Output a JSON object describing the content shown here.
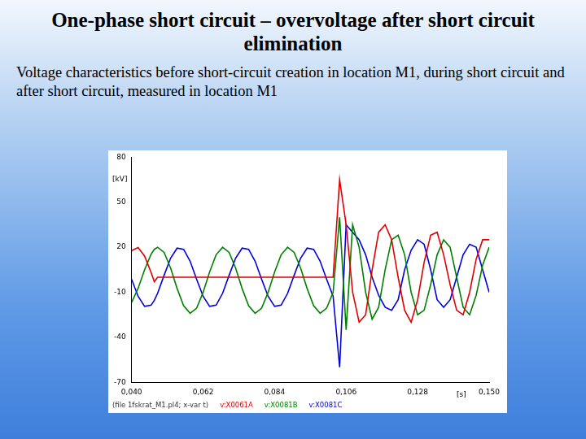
{
  "chart_data": {
    "type": "line",
    "title": "One-phase short circuit – overvoltage after short circuit elimination",
    "subtitle": "Voltage characteristics before short-circuit creation in location M1, during short circuit and after short circuit, measured in location M1",
    "y_label": "[kV]",
    "x_label": "[s]",
    "annotation": "(file 1fskrat_M1.pl4; x-var t)",
    "x": [
      0.04,
      0.042,
      0.044,
      0.046,
      0.047,
      0.048,
      0.05,
      0.052,
      0.054,
      0.056,
      0.058,
      0.06,
      0.062,
      0.064,
      0.066,
      0.068,
      0.07,
      0.072,
      0.074,
      0.076,
      0.078,
      0.08,
      0.082,
      0.084,
      0.086,
      0.088,
      0.09,
      0.092,
      0.094,
      0.096,
      0.098,
      0.1,
      0.102,
      0.104,
      0.106,
      0.108,
      0.11,
      0.112,
      0.114,
      0.116,
      0.118,
      0.12,
      0.122,
      0.124,
      0.126,
      0.128,
      0.13,
      0.132,
      0.134,
      0.136,
      0.138,
      0.14,
      0.142,
      0.144,
      0.146,
      0.148,
      0.15
    ],
    "series": [
      {
        "name": "v:X0061A",
        "color": "#e00000",
        "values": [
          17.8,
          19.8,
          14.1,
          3.1,
          -3,
          0,
          0,
          0,
          0,
          0,
          0,
          0,
          0,
          0,
          0,
          0,
          0,
          0,
          0,
          0,
          0,
          0,
          0,
          0,
          0,
          0,
          0,
          0,
          0,
          0,
          0,
          0,
          0,
          65,
          35,
          -10,
          -30,
          -25,
          5,
          30,
          35,
          25,
          0,
          -22,
          -30,
          -15,
          10,
          28,
          30,
          15,
          -5,
          -22,
          -25,
          -10,
          12,
          25,
          25
        ]
      },
      {
        "name": "v:X0081B",
        "color": "#008000",
        "values": [
          -16.9,
          -7.4,
          5.0,
          15.4,
          18.6,
          20,
          16.6,
          6.1,
          -7.5,
          -19.0,
          -24.0,
          -20.6,
          -10.1,
          3.5,
          15.0,
          20,
          16.6,
          6.1,
          -7.5,
          -19.0,
          -24.0,
          -20.6,
          -10.1,
          3.5,
          15.0,
          20,
          16.6,
          6.1,
          -7.5,
          -19.0,
          -24.0,
          -20.6,
          -10.1,
          40,
          -35,
          35,
          20,
          -10,
          -28,
          -20,
          5,
          25,
          28,
          15,
          -10,
          -25,
          -22,
          -5,
          15,
          25,
          20,
          0,
          -20,
          -25,
          -12,
          8,
          20
        ]
      },
      {
        "name": "v:X0081C",
        "color": "#0000e0",
        "values": [
          -1.3,
          -12.7,
          -19.4,
          -18.6,
          -15.4,
          -10.7,
          1.3,
          12.7,
          19.4,
          18.6,
          10.7,
          -1.3,
          -12.7,
          -19.4,
          -18.6,
          -10.7,
          1.3,
          12.7,
          19.4,
          18.6,
          10.7,
          -1.3,
          -12.7,
          -19.4,
          -18.6,
          -10.7,
          1.3,
          12.7,
          19.4,
          18.6,
          10.7,
          -1.3,
          -12.7,
          -60,
          35,
          30,
          25,
          15,
          0,
          -12,
          -20,
          -22,
          -15,
          5,
          18,
          25,
          22,
          5,
          -15,
          -20,
          -15,
          0,
          15,
          22,
          20,
          5,
          -10
        ]
      }
    ],
    "xlim": [
      0.04,
      0.15
    ],
    "xticks": [
      {
        "value": 0.04,
        "label": "0,040"
      },
      {
        "value": 0.062,
        "label": "0,062"
      },
      {
        "value": 0.084,
        "label": "0,084"
      },
      {
        "value": 0.106,
        "label": "0,106"
      },
      {
        "value": 0.128,
        "label": "0,128"
      },
      {
        "value": 0.15,
        "label": "0,150"
      }
    ],
    "ylim": [
      -70,
      80
    ],
    "yticks": [
      -70,
      -40,
      -10,
      20,
      50,
      80
    ],
    "grid": false
  }
}
